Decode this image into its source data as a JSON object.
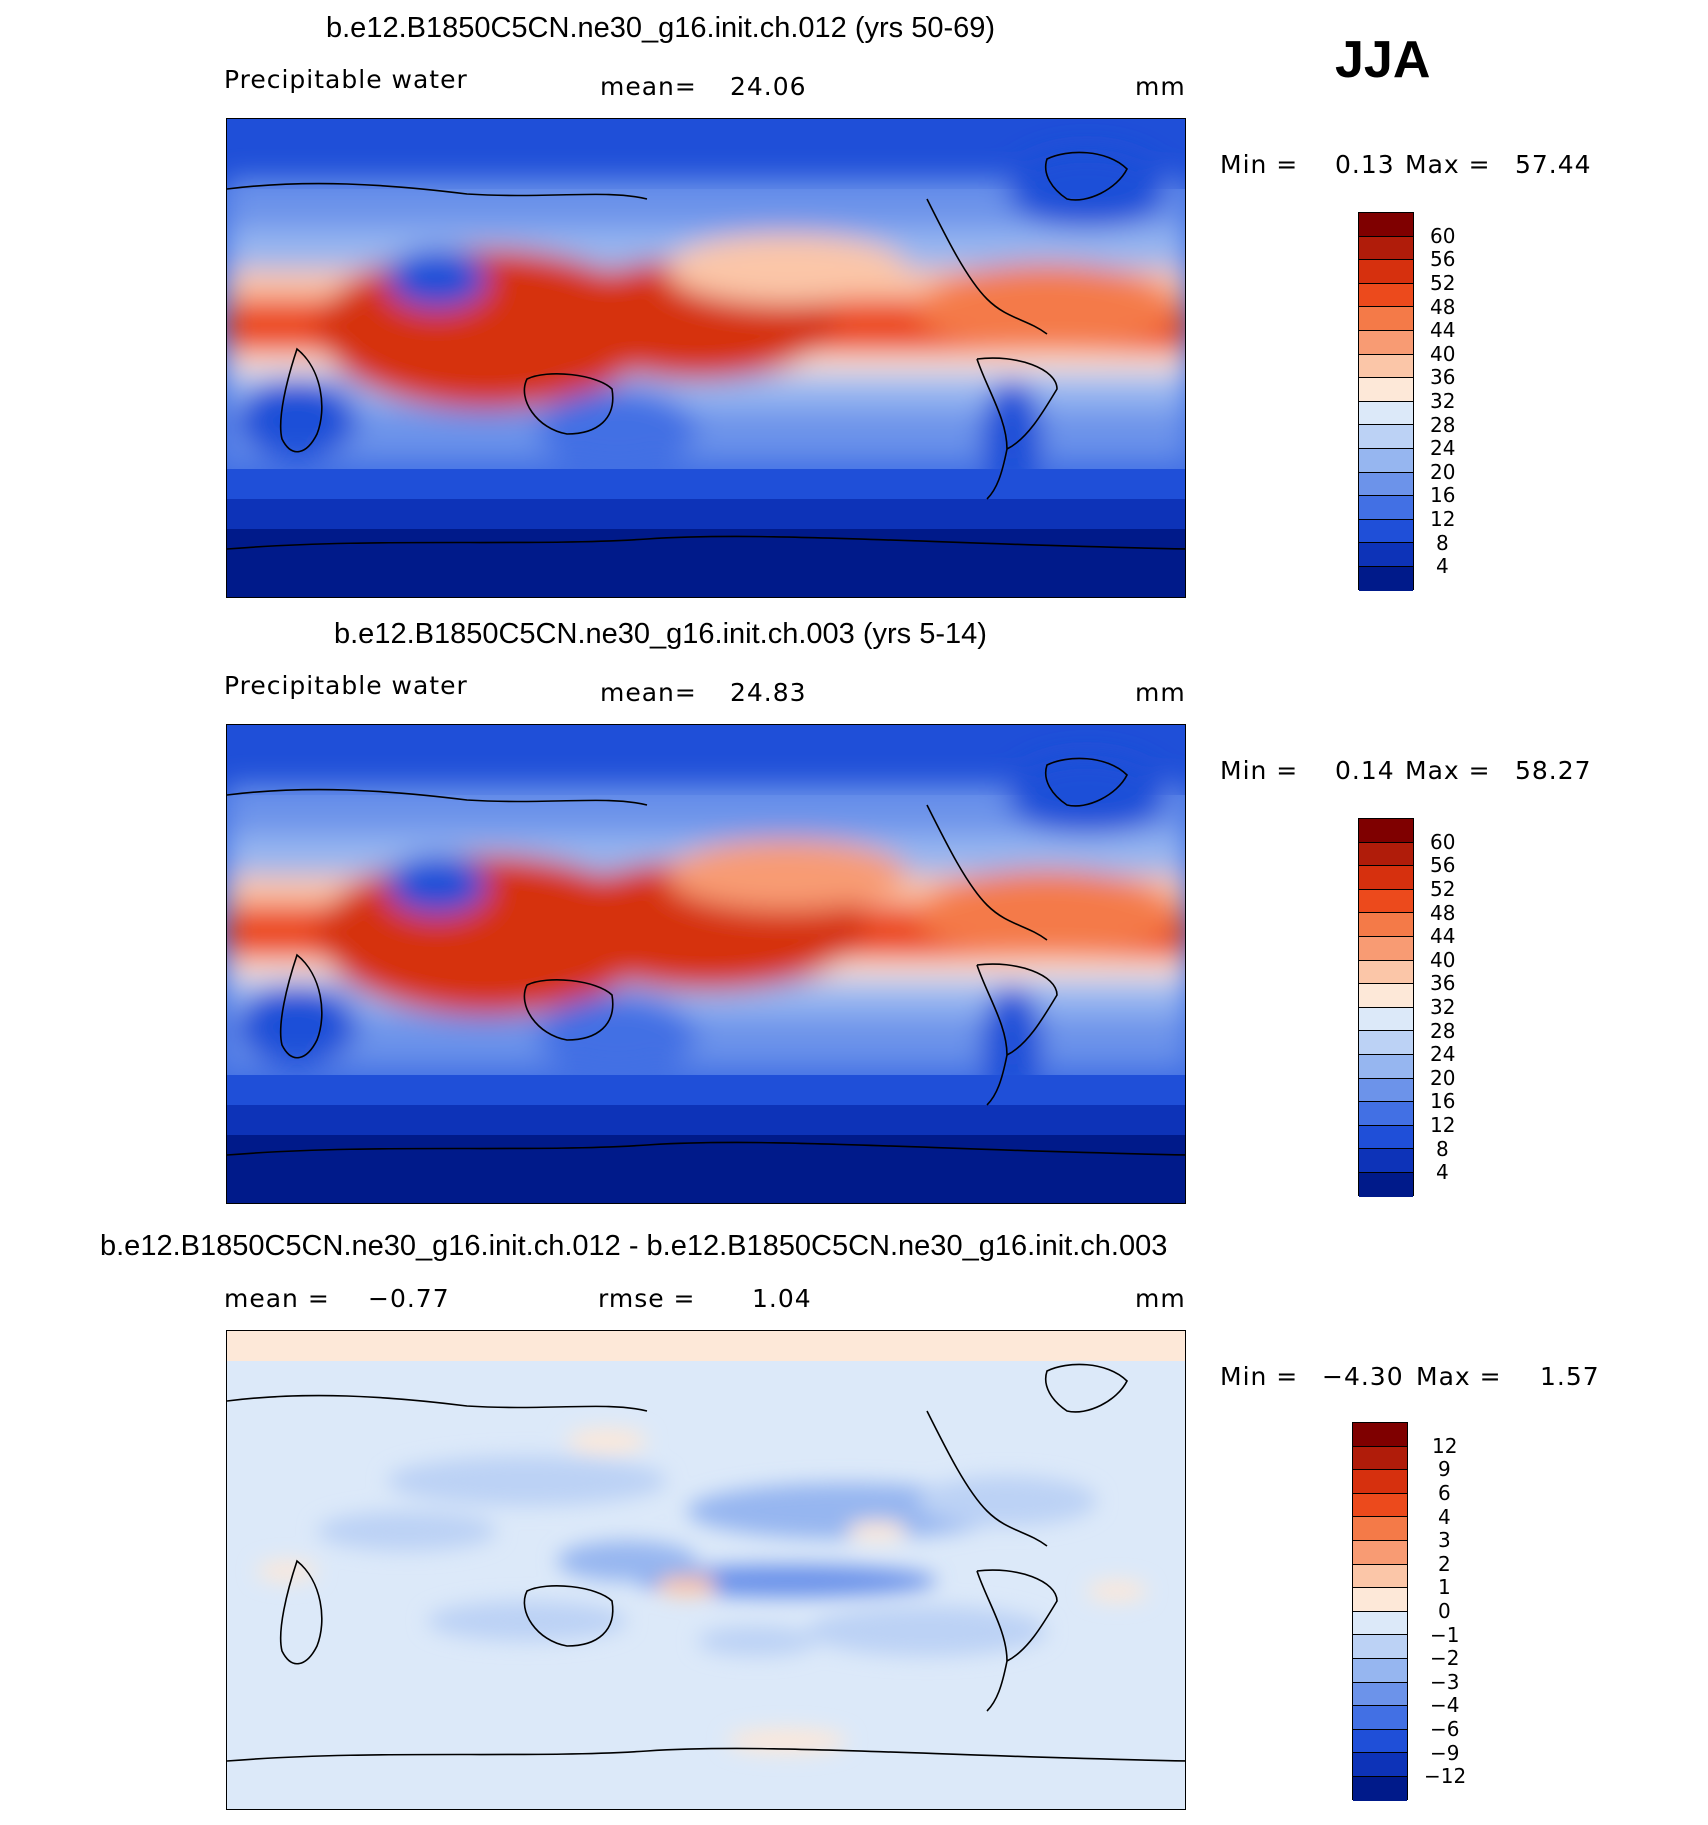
{
  "season": "JJA",
  "panels": [
    {
      "title": "b.e12.B1850C5CN.ne30_g16.init.ch.012 (yrs 50-69)",
      "variable": "Precipitable water",
      "stat_label": "mean=",
      "stat_value": "24.06",
      "units": "mm",
      "minmax_label_min": "Min =",
      "min": "0.13",
      "minmax_label_max": "Max =",
      "max": "57.44",
      "levels": [
        "60",
        "56",
        "52",
        "48",
        "44",
        "40",
        "36",
        "32",
        "28",
        "24",
        "20",
        "16",
        "12",
        "8",
        "4"
      ]
    },
    {
      "title": "b.e12.B1850C5CN.ne30_g16.init.ch.003 (yrs 5-14)",
      "variable": "Precipitable water",
      "stat_label": "mean=",
      "stat_value": "24.83",
      "units": "mm",
      "minmax_label_min": "Min =",
      "min": "0.14",
      "minmax_label_max": "Max =",
      "max": "58.27",
      "levels": [
        "60",
        "56",
        "52",
        "48",
        "44",
        "40",
        "36",
        "32",
        "28",
        "24",
        "20",
        "16",
        "12",
        "8",
        "4"
      ]
    },
    {
      "title": "b.e12.B1850C5CN.ne30_g16.init.ch.012 - b.e12.B1850C5CN.ne30_g16.init.ch.003",
      "stat_label": "mean =",
      "stat_value": "−0.77",
      "rmse_label": "rmse =",
      "rmse_value": "1.04",
      "units": "mm",
      "minmax_label_min": "Min =",
      "min": "−4.30",
      "minmax_label_max": "Max =",
      "max": "1.57",
      "levels": [
        "12",
        "9",
        "6",
        "4",
        "3",
        "2",
        "1",
        "0",
        "−1",
        "−2",
        "−3",
        "−4",
        "−6",
        "−9",
        "−12"
      ]
    }
  ],
  "colors": {
    "colorbar_top_to_bottom": [
      "#7f0000",
      "#b01c0a",
      "#d6300e",
      "#ec4a1c",
      "#f47a48",
      "#f89b73",
      "#fbc6a8",
      "#fde8d8",
      "#dce9f9",
      "#bcd2f5",
      "#96b6f0",
      "#6c93ea",
      "#4270e4",
      "#1f4fd8",
      "#0d33b8",
      "#001a8a"
    ]
  }
}
